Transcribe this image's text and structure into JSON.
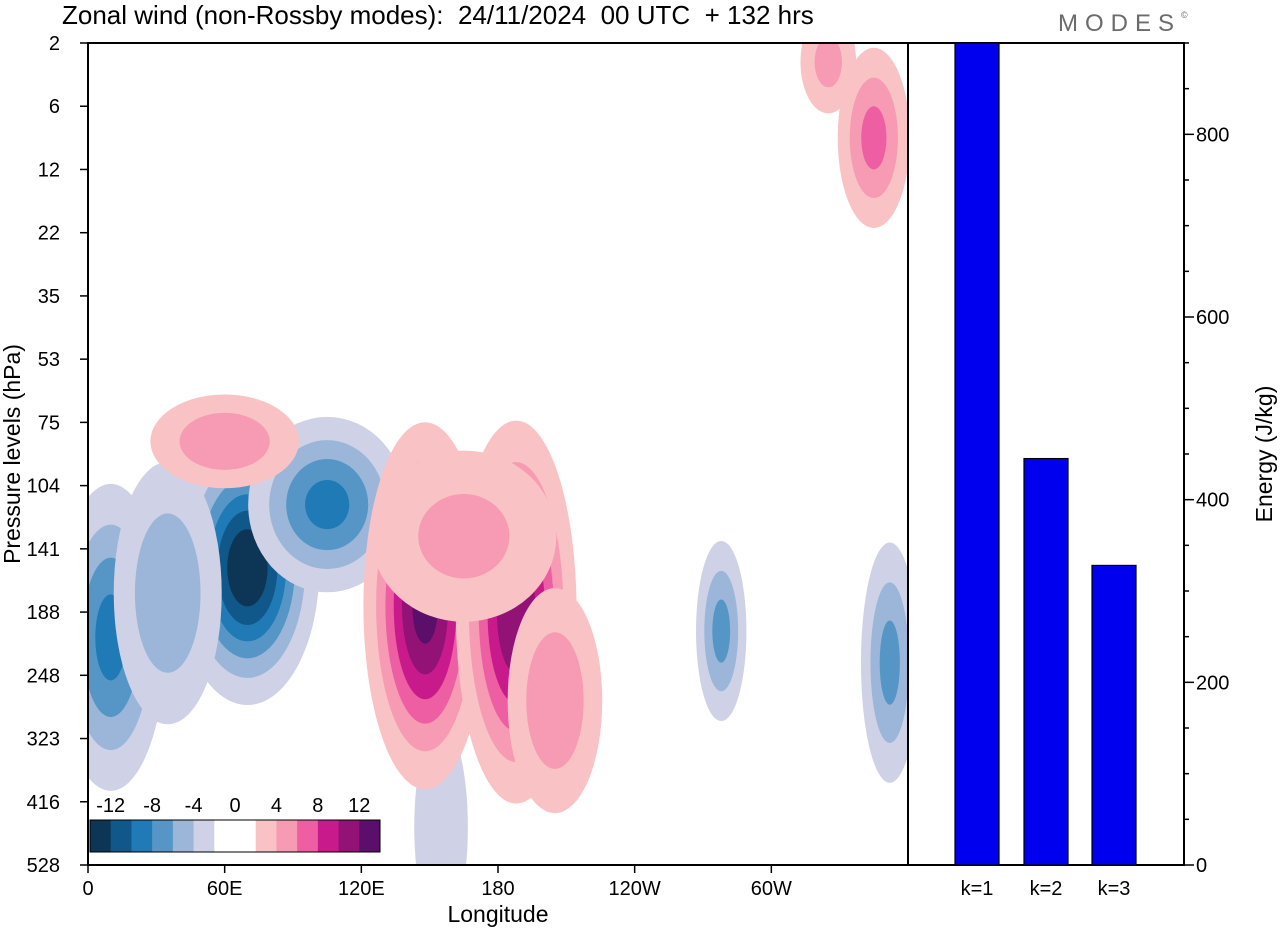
{
  "header": {
    "title": "Zonal wind (non-Rossby modes):  24/11/2024  00 UTC  + 132 hrs",
    "brand": "MODES",
    "brand_mark": "©"
  },
  "chart_data": [
    {
      "type": "heatmap",
      "variable": "Zonal wind (non-Rossby modes)",
      "xlabel": "Longitude",
      "ylabel": "Pressure levels (hPa)",
      "x_ticks": [
        "0",
        "60E",
        "120E",
        "180",
        "120W",
        "60W"
      ],
      "x_tick_positions_deg": [
        0,
        60,
        120,
        180,
        240,
        300
      ],
      "xlim": [
        0,
        360
      ],
      "y_ticks": [
        "2",
        "6",
        "12",
        "22",
        "35",
        "53",
        "75",
        "104",
        "141",
        "188",
        "248",
        "323",
        "416",
        "528"
      ],
      "colorbar": {
        "labels": [
          "-12",
          "-8",
          "-4",
          "0",
          "4",
          "8",
          "12"
        ],
        "colors": [
          "#0d3555",
          "#10578a",
          "#1f7ab5",
          "#5596c6",
          "#9bb6d8",
          "#cfd1e6",
          "#ffffff",
          "#ffffff",
          "#f9c3c5",
          "#f69bb3",
          "#ee5ea3",
          "#c91a8c",
          "#931276",
          "#5b0f6b"
        ]
      },
      "features": [
        {
          "kind": "negative",
          "lon": 70,
          "level_index": 8.3,
          "lon_width": 16,
          "level_width": 1.1,
          "strength": 14
        },
        {
          "kind": "negative",
          "lon": 105,
          "level_index": 7.3,
          "lon_width": 20,
          "level_width": 0.8,
          "strength": 9
        },
        {
          "kind": "negative",
          "lon": 10,
          "level_index": 9.4,
          "lon_width": 14,
          "level_width": 1.4,
          "strength": 9
        },
        {
          "kind": "negative",
          "lon": 35,
          "level_index": 8.7,
          "lon_width": 16,
          "level_width": 1.4,
          "strength": 6
        },
        {
          "kind": "negative",
          "lon": 278,
          "level_index": 9.3,
          "lon_width": 7,
          "level_width": 0.9,
          "strength": 7
        },
        {
          "kind": "negative",
          "lon": 352,
          "level_index": 9.8,
          "lon_width": 8,
          "level_width": 1.2,
          "strength": 7
        },
        {
          "kind": "negative",
          "lon": 155,
          "level_index": 12.4,
          "lon_width": 10,
          "level_width": 1.4,
          "strength": 4
        },
        {
          "kind": "positive",
          "lon": 148,
          "level_index": 8.9,
          "lon_width": 14,
          "level_width": 1.5,
          "strength": 13
        },
        {
          "kind": "positive",
          "lon": 188,
          "level_index": 9.0,
          "lon_width": 14,
          "level_width": 1.6,
          "strength": 12
        },
        {
          "kind": "positive",
          "lon": 205,
          "level_index": 10.4,
          "lon_width": 14,
          "level_width": 1.2,
          "strength": 6
        },
        {
          "kind": "positive",
          "lon": 165,
          "level_index": 7.8,
          "lon_width": 30,
          "level_width": 1.0,
          "strength": 5
        },
        {
          "kind": "positive",
          "lon": 60,
          "level_index": 6.3,
          "lon_width": 22,
          "level_width": 0.5,
          "strength": 6
        },
        {
          "kind": "positive",
          "lon": 345,
          "level_index": 1.5,
          "lon_width": 10,
          "level_width": 0.9,
          "strength": 7
        },
        {
          "kind": "positive",
          "lon": 325,
          "level_index": 0.3,
          "lon_width": 9,
          "level_width": 0.6,
          "strength": 5
        }
      ]
    },
    {
      "type": "bar",
      "categories": [
        "k=1",
        "k=2",
        "k=3"
      ],
      "values": [
        900,
        445,
        328
      ],
      "ylabel": "Energy (J/kg)",
      "ylim": [
        0,
        900
      ],
      "y_ticks": [
        0,
        200,
        400,
        600,
        800
      ],
      "bar_color": "#0000ee"
    }
  ]
}
